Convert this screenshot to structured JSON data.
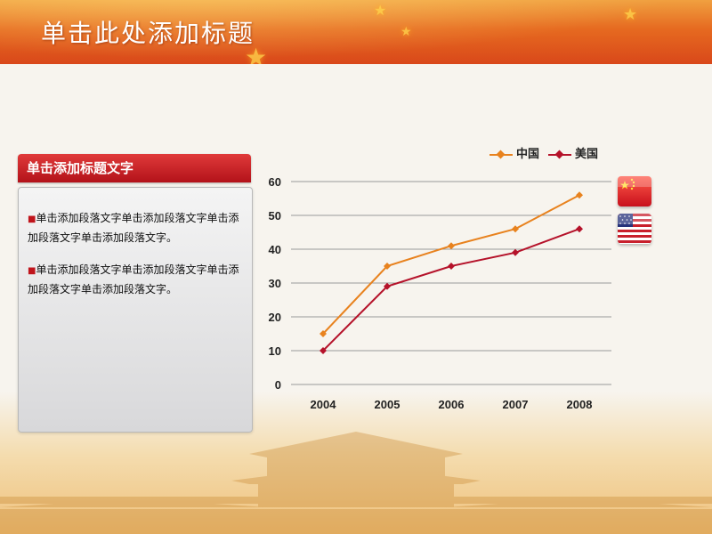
{
  "header": {
    "title": "单击此处添加标题"
  },
  "card": {
    "heading": "单击添加标题文字",
    "paragraphs": [
      "单击添加段落文字单击添加段落文字单击添加段落文字单击添加段落文字。",
      "单击添加段落文字单击添加段落文字单击添加段落文字单击添加段落文字。"
    ]
  },
  "colors": {
    "china": "#e8821e",
    "usa": "#b5122a",
    "header_accent": "#d9481a"
  },
  "chart_data": {
    "type": "line",
    "categories": [
      "2004",
      "2005",
      "2006",
      "2007",
      "2008"
    ],
    "series": [
      {
        "name": "中国",
        "values": [
          15,
          35,
          41,
          46,
          56
        ]
      },
      {
        "name": "美国",
        "values": [
          10,
          29,
          35,
          39,
          46
        ]
      }
    ],
    "yticks": [
      "60",
      "50",
      "40",
      "30",
      "20",
      "10",
      "0"
    ],
    "ylim": [
      0,
      60
    ],
    "grid": true,
    "legend": "top-right",
    "title": "",
    "xlabel": "",
    "ylabel": ""
  },
  "flags": [
    "china-flag-icon",
    "usa-flag-icon"
  ]
}
